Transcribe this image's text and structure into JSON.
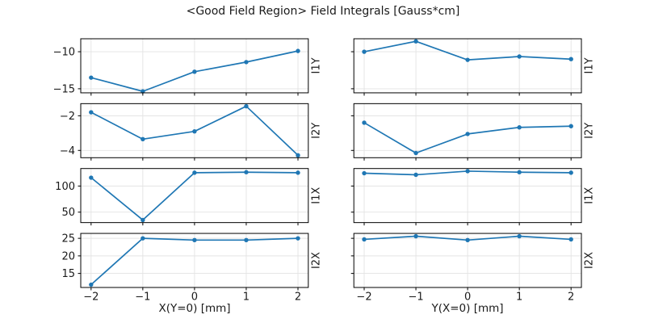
{
  "figure": {
    "title": "<Good Field Region> Field Integrals [Gauss*cm]",
    "background": "#ffffff",
    "line_color": "#1f77b4",
    "grid_color": "#e3e3e3",
    "spine_color": "#000000",
    "text_color": "#1a1a1a"
  },
  "chart_data": {
    "type": "line",
    "title": "<Good Field Region> Field Integrals [Gauss*cm]",
    "layout": "4 rows x 2 columns, shared x per column, shared y per row, grid on, right-side rotated row labels",
    "marker": "circle",
    "x": [
      -2,
      -1,
      0,
      1,
      2
    ],
    "xticks": [
      -2,
      -1,
      0,
      1,
      2
    ],
    "xlim": [
      -2.2,
      2.2
    ],
    "columns": [
      {
        "xlabel": "X(Y=0) [mm]"
      },
      {
        "xlabel": "Y(X=0) [mm]"
      }
    ],
    "rows": [
      {
        "ylabel": "I1Y",
        "yticks": [
          -15,
          -10
        ],
        "ylim": [
          -15.55,
          -8.25
        ],
        "series": [
          {
            "name": "I1Y vs X(Y=0)",
            "values": [
              -13.5,
              -15.35,
              -12.7,
              -11.4,
              -9.9
            ]
          },
          {
            "name": "I1Y vs Y(X=0)",
            "values": [
              -10.0,
              -8.6,
              -11.1,
              -10.65,
              -11.0
            ]
          }
        ]
      },
      {
        "ylabel": "I2Y",
        "yticks": [
          -4,
          -2
        ],
        "ylim": [
          -4.42,
          -1.3
        ],
        "series": [
          {
            "name": "I2Y vs X(Y=0)",
            "values": [
              -1.8,
              -3.35,
              -2.9,
              -1.45,
              -4.28
            ]
          },
          {
            "name": "I2Y vs Y(X=0)",
            "values": [
              -2.4,
              -4.15,
              -3.05,
              -2.67,
              -2.6
            ]
          }
        ]
      },
      {
        "ylabel": "I1X",
        "yticks": [
          50,
          100
        ],
        "ylim": [
          30,
          133.5
        ],
        "series": [
          {
            "name": "I1X vs X(Y=0)",
            "values": [
              116,
              35,
              125.5,
              126.5,
              125.5
            ]
          },
          {
            "name": "I1X vs Y(X=0)",
            "values": [
              124.5,
              121.5,
              128.5,
              126.5,
              125.5
            ]
          }
        ]
      },
      {
        "ylabel": "I2X",
        "yticks": [
          15,
          20,
          25
        ],
        "ylim": [
          11.0,
          26.4
        ],
        "series": [
          {
            "name": "I2X vs X(Y=0)",
            "values": [
              11.8,
              25.0,
              24.5,
              24.5,
              25.0
            ]
          },
          {
            "name": "I2X vs Y(X=0)",
            "values": [
              24.7,
              25.6,
              24.5,
              25.6,
              24.7
            ]
          }
        ]
      }
    ]
  }
}
